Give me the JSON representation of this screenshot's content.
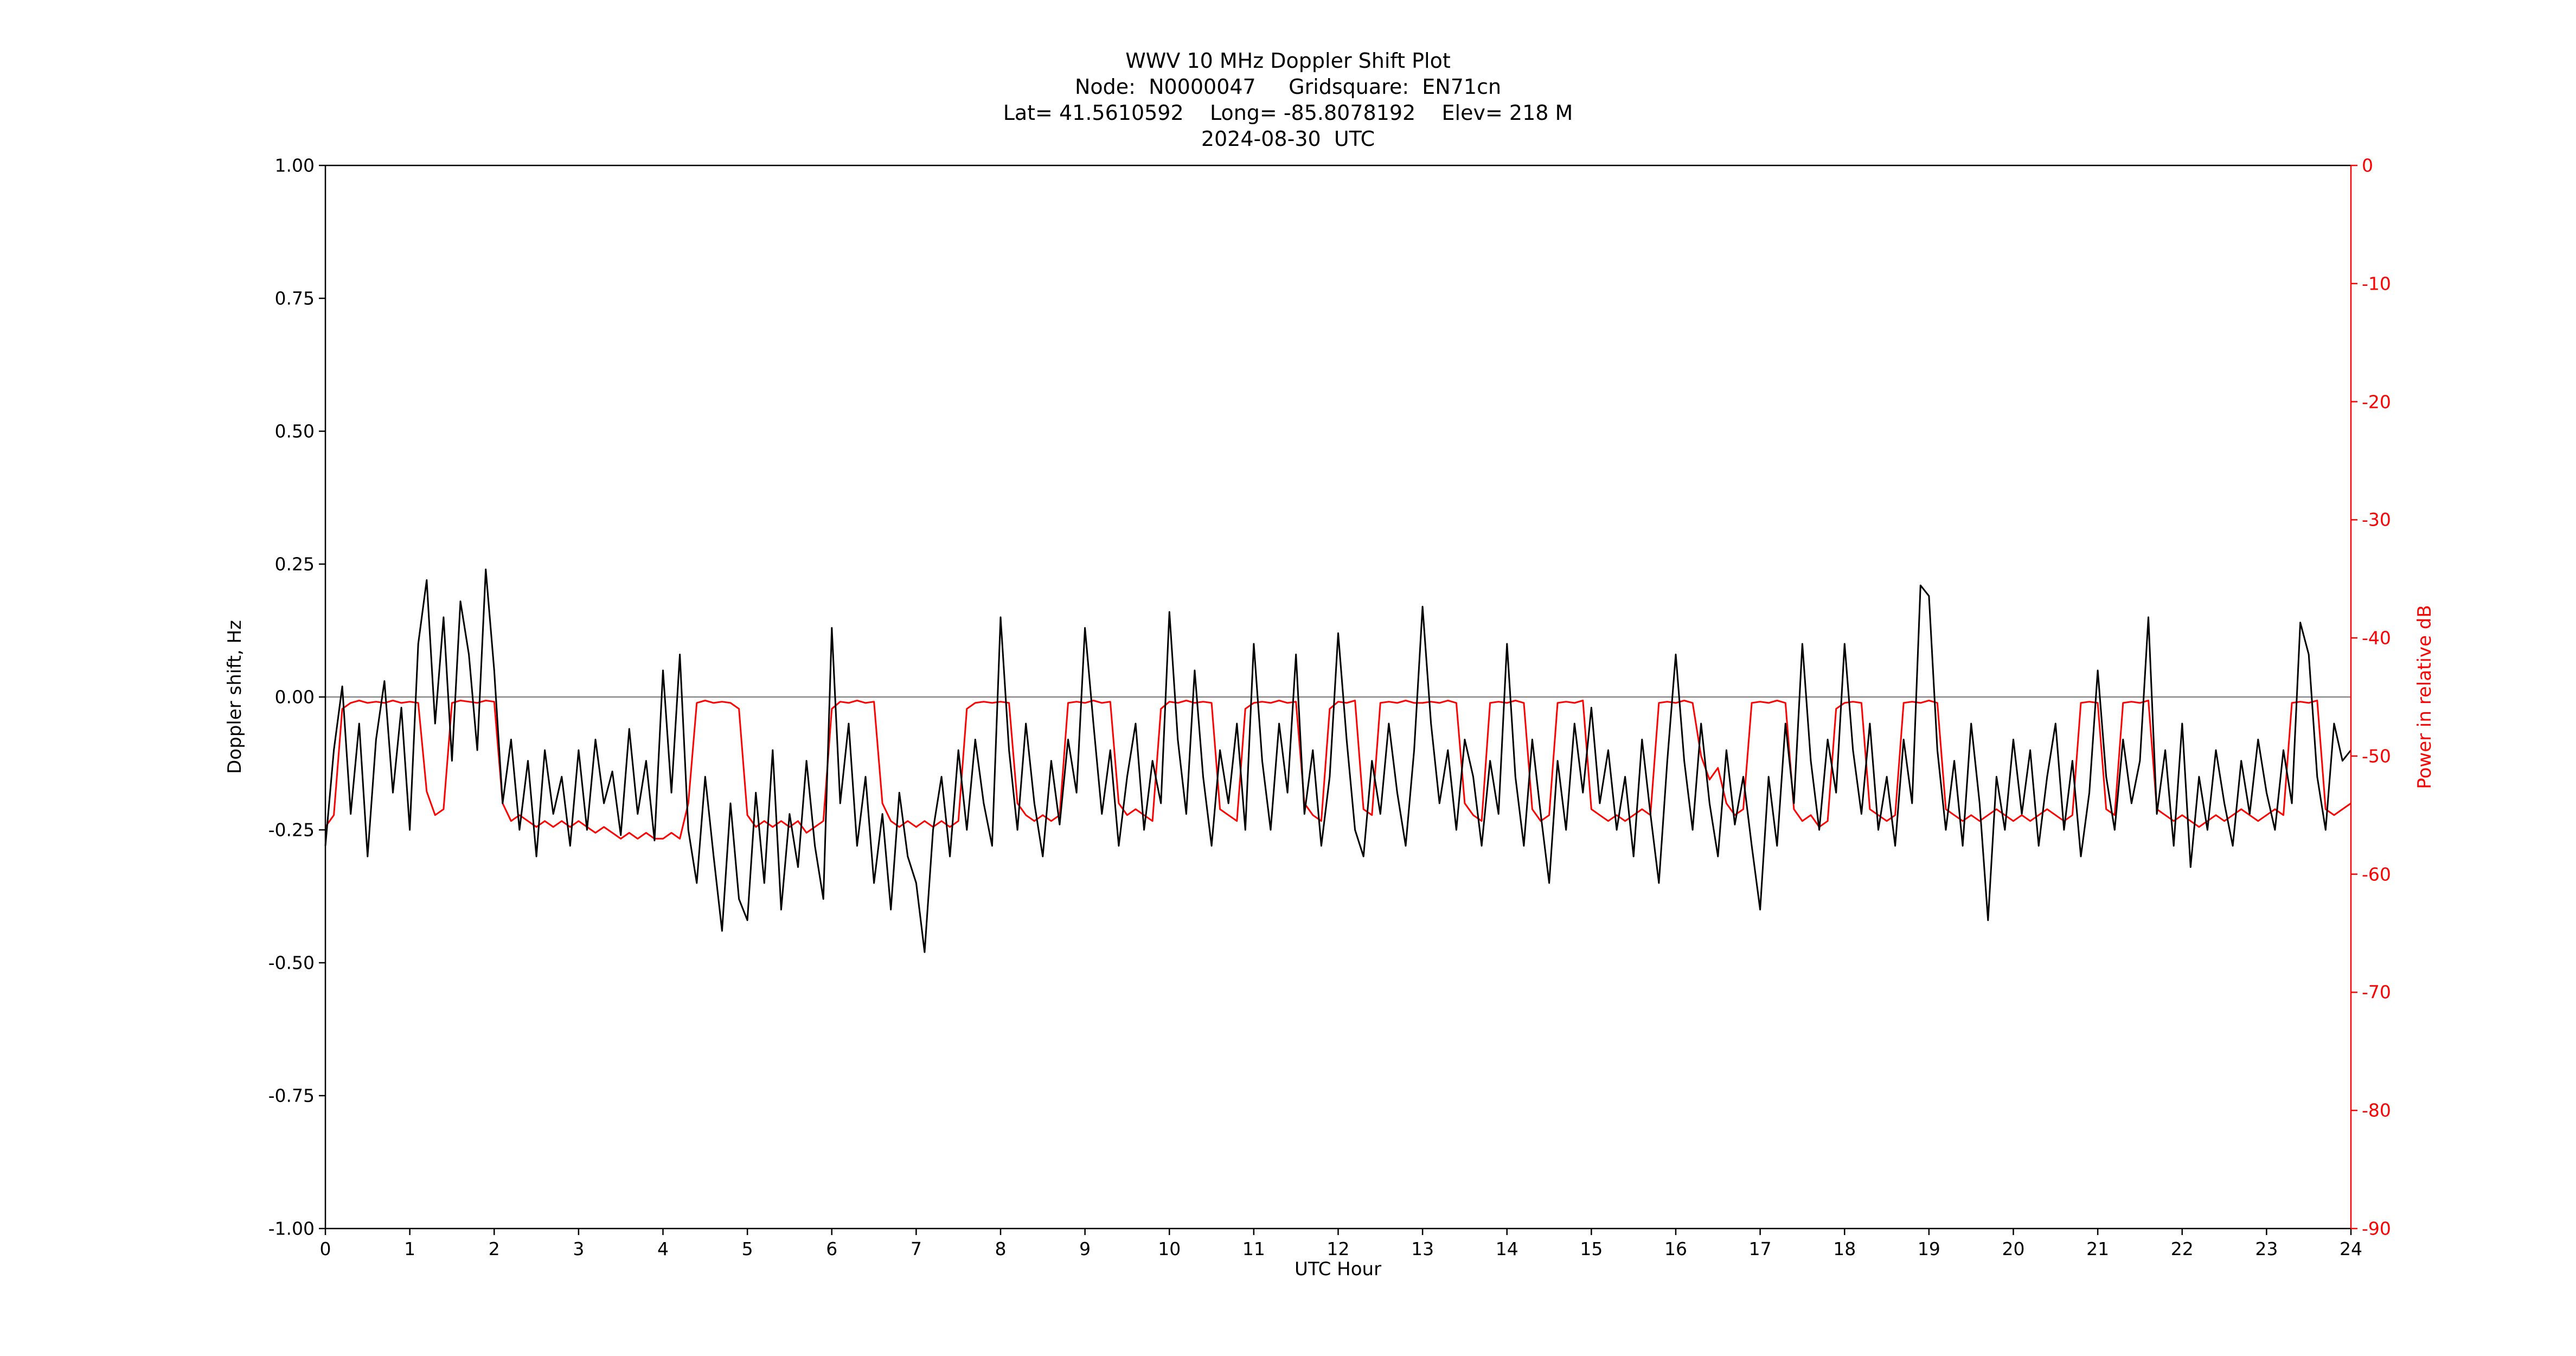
{
  "header": {
    "line1": "WWV 10 MHz Doppler Shift Plot",
    "line2": "Node:  N0000047     Gridsquare:  EN71cn",
    "line3": "Lat= 41.5610592    Long= -85.8078192    Elev= 218 M",
    "line4": "2024-08-30  UTC"
  },
  "chart_data": {
    "type": "line",
    "title": "WWV 10 MHz Doppler Shift Plot",
    "subtitle_lines": [
      "Node:  N0000047     Gridsquare:  EN71cn",
      "Lat= 41.5610592    Long= -85.8078192    Elev= 218 M",
      "2024-08-30  UTC"
    ],
    "xlabel": "UTC Hour",
    "ylabel_left": "Doppler shift, Hz",
    "ylabel_right": "Power in relative dB",
    "xlim": [
      0,
      24
    ],
    "ylim_left": [
      -1.0,
      1.0
    ],
    "ylim_right": [
      -90,
      0
    ],
    "grid": false,
    "legend": "none",
    "background": "#ffffff",
    "zero_line": {
      "y": 0,
      "color": "#888888"
    },
    "axis_colors": {
      "left": "#000000",
      "right": "#ff0000"
    },
    "xticks": {
      "values": [
        0,
        1,
        2,
        3,
        4,
        5,
        6,
        7,
        8,
        9,
        10,
        11,
        12,
        13,
        14,
        15,
        16,
        17,
        18,
        19,
        20,
        21,
        22,
        23,
        24
      ],
      "labels": [
        "0",
        "1",
        "2",
        "3",
        "4",
        "5",
        "6",
        "7",
        "8",
        "9",
        "10",
        "11",
        "12",
        "13",
        "14",
        "15",
        "16",
        "17",
        "18",
        "19",
        "20",
        "21",
        "22",
        "23",
        "24"
      ]
    },
    "yticks_left": {
      "values": [
        -1.0,
        -0.75,
        -0.5,
        -0.25,
        0.0,
        0.25,
        0.5,
        0.75,
        1.0
      ],
      "labels": [
        "-1.00",
        "-0.75",
        "-0.50",
        "-0.25",
        "0.00",
        "0.25",
        "0.50",
        "0.75",
        "1.00"
      ]
    },
    "yticks_right": {
      "values": [
        0,
        -10,
        -20,
        -30,
        -40,
        -50,
        -60,
        -70,
        -80,
        -90
      ],
      "labels": [
        "0",
        "-10",
        "-20",
        "-30",
        "-40",
        "-50",
        "-60",
        "-70",
        "-80",
        "-90"
      ]
    },
    "series": [
      {
        "name": "Doppler shift (Hz)",
        "color": "#000000",
        "axis": "left",
        "line_width": 3,
        "x_start": 0,
        "x_step": 0.1,
        "values": [
          -0.28,
          -0.1,
          0.02,
          -0.22,
          -0.05,
          -0.3,
          -0.08,
          0.03,
          -0.18,
          -0.02,
          -0.25,
          0.1,
          0.22,
          -0.05,
          0.15,
          -0.12,
          0.18,
          0.08,
          -0.1,
          0.24,
          0.05,
          -0.2,
          -0.08,
          -0.25,
          -0.12,
          -0.3,
          -0.1,
          -0.22,
          -0.15,
          -0.28,
          -0.1,
          -0.25,
          -0.08,
          -0.2,
          -0.14,
          -0.26,
          -0.06,
          -0.22,
          -0.12,
          -0.27,
          0.05,
          -0.18,
          0.08,
          -0.25,
          -0.35,
          -0.15,
          -0.3,
          -0.44,
          -0.2,
          -0.38,
          -0.42,
          -0.18,
          -0.35,
          -0.1,
          -0.4,
          -0.22,
          -0.32,
          -0.12,
          -0.28,
          -0.38,
          0.13,
          -0.2,
          -0.05,
          -0.28,
          -0.15,
          -0.35,
          -0.22,
          -0.4,
          -0.18,
          -0.3,
          -0.35,
          -0.48,
          -0.25,
          -0.15,
          -0.3,
          -0.1,
          -0.25,
          -0.08,
          -0.2,
          -0.28,
          0.15,
          -0.1,
          -0.25,
          -0.05,
          -0.2,
          -0.3,
          -0.12,
          -0.24,
          -0.08,
          -0.18,
          0.13,
          -0.05,
          -0.22,
          -0.1,
          -0.28,
          -0.15,
          -0.05,
          -0.25,
          -0.12,
          -0.2,
          0.16,
          -0.08,
          -0.22,
          0.05,
          -0.15,
          -0.28,
          -0.1,
          -0.2,
          -0.05,
          -0.25,
          0.1,
          -0.12,
          -0.25,
          -0.05,
          -0.18,
          0.08,
          -0.22,
          -0.1,
          -0.28,
          -0.15,
          0.12,
          -0.08,
          -0.25,
          -0.3,
          -0.12,
          -0.22,
          -0.05,
          -0.18,
          -0.28,
          -0.1,
          0.17,
          -0.05,
          -0.2,
          -0.1,
          -0.25,
          -0.08,
          -0.15,
          -0.28,
          -0.12,
          -0.22,
          0.1,
          -0.15,
          -0.28,
          -0.08,
          -0.22,
          -0.35,
          -0.12,
          -0.25,
          -0.05,
          -0.18,
          -0.02,
          -0.2,
          -0.1,
          -0.25,
          -0.15,
          -0.3,
          -0.08,
          -0.22,
          -0.35,
          -0.12,
          0.08,
          -0.12,
          -0.25,
          -0.05,
          -0.2,
          -0.3,
          -0.1,
          -0.24,
          -0.15,
          -0.28,
          -0.4,
          -0.15,
          -0.28,
          -0.05,
          -0.2,
          0.1,
          -0.12,
          -0.25,
          -0.08,
          -0.18,
          0.1,
          -0.1,
          -0.22,
          -0.05,
          -0.25,
          -0.15,
          -0.28,
          -0.08,
          -0.2,
          0.21,
          0.19,
          -0.1,
          -0.25,
          -0.12,
          -0.28,
          -0.05,
          -0.2,
          -0.42,
          -0.15,
          -0.25,
          -0.08,
          -0.22,
          -0.1,
          -0.28,
          -0.15,
          -0.05,
          -0.25,
          -0.12,
          -0.3,
          -0.18,
          0.05,
          -0.15,
          -0.25,
          -0.08,
          -0.2,
          -0.12,
          0.15,
          -0.22,
          -0.1,
          -0.28,
          -0.05,
          -0.32,
          -0.15,
          -0.25,
          -0.1,
          -0.2,
          -0.28,
          -0.12,
          -0.22,
          -0.08,
          -0.18,
          -0.25,
          -0.1,
          -0.2,
          0.14,
          0.08,
          -0.15,
          -0.25,
          -0.05,
          -0.12,
          -0.1
        ]
      },
      {
        "name": "Power in relative dB",
        "color": "#ff0000",
        "axis": "right",
        "line_width": 3,
        "x_start": 0,
        "x_step": 0.1,
        "values": [
          -56.0,
          -55.0,
          -46.0,
          -45.5,
          -45.3,
          -45.5,
          -45.4,
          -45.5,
          -45.3,
          -45.5,
          -45.4,
          -45.5,
          -53.0,
          -55.0,
          -54.5,
          -45.5,
          -45.3,
          -45.4,
          -45.5,
          -45.3,
          -45.4,
          -54.0,
          -55.5,
          -55.0,
          -55.5,
          -56.0,
          -55.5,
          -56.0,
          -55.5,
          -56.0,
          -55.5,
          -56.0,
          -56.5,
          -56.0,
          -56.5,
          -57.0,
          -56.5,
          -57.0,
          -56.5,
          -57.0,
          -57.0,
          -56.5,
          -57.0,
          -54.0,
          -45.5,
          -45.3,
          -45.5,
          -45.4,
          -45.5,
          -46.0,
          -55.0,
          -56.0,
          -55.5,
          -56.0,
          -55.5,
          -56.0,
          -55.5,
          -56.5,
          -56.0,
          -55.5,
          -46.0,
          -45.4,
          -45.5,
          -45.3,
          -45.5,
          -45.4,
          -54.0,
          -55.5,
          -56.0,
          -55.5,
          -56.0,
          -55.5,
          -56.0,
          -55.5,
          -56.0,
          -55.5,
          -46.0,
          -45.5,
          -45.4,
          -45.5,
          -45.4,
          -45.5,
          -54.0,
          -55.0,
          -55.5,
          -55.0,
          -55.5,
          -55.0,
          -45.5,
          -45.4,
          -45.5,
          -45.3,
          -45.5,
          -45.4,
          -54.0,
          -55.0,
          -54.5,
          -55.0,
          -55.5,
          -46.0,
          -45.4,
          -45.5,
          -45.3,
          -45.5,
          -45.4,
          -45.5,
          -54.5,
          -55.0,
          -55.5,
          -46.0,
          -45.5,
          -45.4,
          -45.5,
          -45.3,
          -45.5,
          -45.4,
          -54.0,
          -55.0,
          -55.5,
          -46.0,
          -45.4,
          -45.5,
          -45.3,
          -54.5,
          -55.0,
          -45.5,
          -45.4,
          -45.5,
          -45.3,
          -45.5,
          -45.5,
          -45.4,
          -45.5,
          -45.3,
          -45.5,
          -54.0,
          -55.0,
          -55.5,
          -45.5,
          -45.4,
          -45.5,
          -45.3,
          -45.5,
          -54.5,
          -55.5,
          -55.0,
          -45.5,
          -45.4,
          -45.5,
          -45.3,
          -54.5,
          -55.0,
          -55.5,
          -55.0,
          -55.5,
          -55.0,
          -54.5,
          -55.0,
          -45.5,
          -45.4,
          -45.5,
          -45.3,
          -45.5,
          -50.0,
          -52.0,
          -51.0,
          -54.0,
          -55.0,
          -54.5,
          -45.5,
          -45.4,
          -45.5,
          -45.3,
          -45.5,
          -54.5,
          -55.5,
          -55.0,
          -56.0,
          -55.5,
          -46.0,
          -45.5,
          -45.4,
          -45.5,
          -54.5,
          -55.0,
          -55.5,
          -55.0,
          -45.5,
          -45.4,
          -45.5,
          -45.3,
          -45.5,
          -54.5,
          -55.0,
          -55.5,
          -55.0,
          -55.5,
          -55.0,
          -54.5,
          -55.0,
          -55.5,
          -55.0,
          -55.5,
          -55.0,
          -54.5,
          -55.0,
          -55.5,
          -55.0,
          -45.5,
          -45.4,
          -45.5,
          -54.5,
          -55.0,
          -45.5,
          -45.4,
          -45.5,
          -45.3,
          -54.5,
          -55.0,
          -55.5,
          -55.0,
          -55.5,
          -56.0,
          -55.5,
          -55.0,
          -55.5,
          -55.0,
          -54.5,
          -55.0,
          -55.5,
          -55.0,
          -54.5,
          -55.0,
          -45.5,
          -45.4,
          -45.5,
          -45.3,
          -54.5,
          -55.0,
          -54.5,
          -54.0
        ]
      }
    ]
  }
}
